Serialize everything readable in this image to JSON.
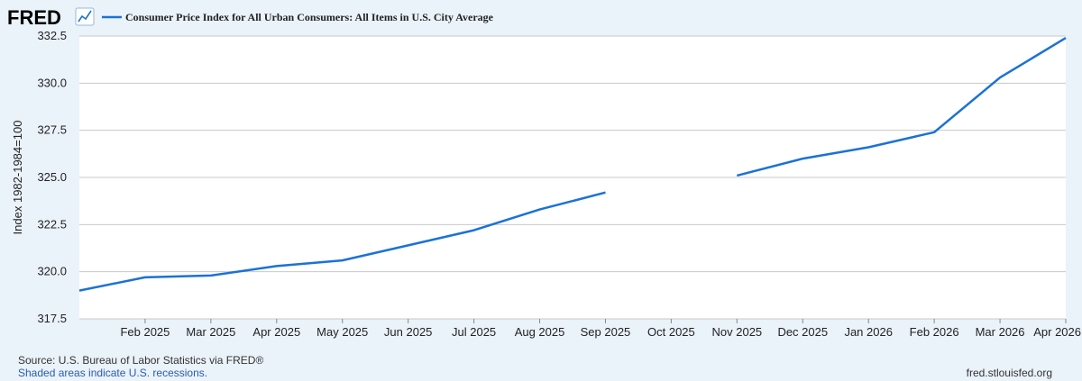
{
  "header": {
    "logo_text": "FRED",
    "logo_icon": "trend-line-icon"
  },
  "colors": {
    "series": "#1b72d6",
    "grid": "#c8c8c8",
    "plot_bg": "#ffffff",
    "page_bg": "#eaf2fa"
  },
  "chart_data": {
    "type": "line",
    "title": "",
    "xlabel": "",
    "ylabel": "Index 1982-1984=100",
    "ylim": [
      317.5,
      332.5
    ],
    "yticks": [
      "317.5",
      "320.0",
      "322.5",
      "325.0",
      "327.5",
      "330.0",
      "332.5"
    ],
    "xticks": [
      "Feb 2025",
      "Mar 2025",
      "Apr 2025",
      "May 2025",
      "Jun 2025",
      "Jul 2025",
      "Aug 2025",
      "Sep 2025",
      "Oct 2025",
      "Nov 2025",
      "Dec 2025",
      "Jan 2026",
      "Feb 2026",
      "Mar 2026",
      "Apr 2026"
    ],
    "grid": true,
    "legend_position": "top",
    "series": [
      {
        "name": "Consumer Price Index for All Urban Consumers: All Items in U.S. City Average",
        "points": [
          {
            "x": "Jan 2025",
            "y": 319.0
          },
          {
            "x": "Feb 2025",
            "y": 319.7
          },
          {
            "x": "Mar 2025",
            "y": 319.8
          },
          {
            "x": "Apr 2025",
            "y": 320.3
          },
          {
            "x": "May 2025",
            "y": 320.6
          },
          {
            "x": "Jun 2025",
            "y": 321.4
          },
          {
            "x": "Jul 2025",
            "y": 322.2
          },
          {
            "x": "Aug 2025",
            "y": 323.3
          },
          {
            "x": "Sep 2025",
            "y": 324.2
          },
          {
            "x": "Oct 2025",
            "y": null
          },
          {
            "x": "Nov 2025",
            "y": 325.1
          },
          {
            "x": "Dec 2025",
            "y": 326.0
          },
          {
            "x": "Jan 2026",
            "y": 326.6
          },
          {
            "x": "Feb 2026",
            "y": 327.4
          },
          {
            "x": "Mar 2026",
            "y": 330.3
          },
          {
            "x": "Apr 2026",
            "y": 332.4
          }
        ]
      }
    ]
  },
  "footer": {
    "source": "Source: U.S. Bureau of Labor Statistics via FRED®",
    "recession_note": "Shaded areas indicate U.S. recessions.",
    "website": "fred.stlouisfed.org"
  }
}
